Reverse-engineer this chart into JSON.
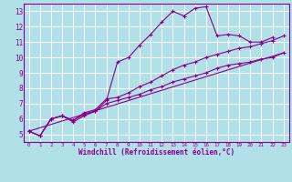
{
  "title": "",
  "xlabel": "Windchill (Refroidissement éolien,°C)",
  "ylabel": "",
  "bg_color": "#b2e0e8",
  "grid_color": "#ffffff",
  "line_color": "#880088",
  "xlim": [
    -0.5,
    23.5
  ],
  "ylim": [
    4.5,
    13.5
  ],
  "xticks": [
    0,
    1,
    2,
    3,
    4,
    5,
    6,
    7,
    8,
    9,
    10,
    11,
    12,
    13,
    14,
    15,
    16,
    17,
    18,
    19,
    20,
    21,
    22,
    23
  ],
  "yticks": [
    5,
    6,
    7,
    8,
    9,
    10,
    11,
    12,
    13
  ],
  "line1_x": [
    0,
    1,
    2,
    3,
    4,
    5,
    6,
    7,
    8,
    9,
    10,
    11,
    12,
    13,
    14,
    15,
    16,
    17,
    18,
    19,
    20,
    21,
    22
  ],
  "line1_y": [
    5.2,
    4.9,
    6.0,
    6.2,
    5.8,
    6.2,
    6.5,
    7.2,
    9.7,
    10.0,
    10.8,
    11.5,
    12.3,
    13.0,
    12.7,
    13.2,
    13.3,
    11.4,
    11.5,
    11.4,
    11.0,
    11.0,
    11.3
  ],
  "line2_x": [
    0,
    1,
    2,
    3,
    4,
    5,
    6,
    7,
    8,
    9,
    10,
    11,
    12,
    13,
    14,
    15,
    16,
    17,
    18,
    19,
    20,
    21,
    22,
    23
  ],
  "line2_y": [
    5.2,
    4.9,
    6.0,
    6.2,
    5.9,
    6.3,
    6.5,
    7.0,
    7.2,
    7.4,
    7.6,
    7.9,
    8.1,
    8.4,
    8.6,
    8.8,
    9.0,
    9.3,
    9.5,
    9.6,
    9.7,
    9.9,
    10.0,
    10.3
  ],
  "line3_x": [
    0,
    1,
    2,
    3,
    4,
    5,
    6,
    7,
    8,
    9,
    10,
    11,
    12,
    13,
    14,
    15,
    16,
    17,
    18,
    19,
    20,
    21,
    22,
    23
  ],
  "line3_y": [
    5.2,
    4.9,
    6.0,
    6.2,
    5.9,
    6.4,
    6.6,
    7.3,
    7.4,
    7.7,
    8.1,
    8.4,
    8.8,
    9.2,
    9.5,
    9.7,
    10.0,
    10.2,
    10.4,
    10.6,
    10.7,
    10.9,
    11.1,
    11.4
  ],
  "line4_x": [
    0,
    23
  ],
  "line4_y": [
    5.2,
    10.3
  ]
}
